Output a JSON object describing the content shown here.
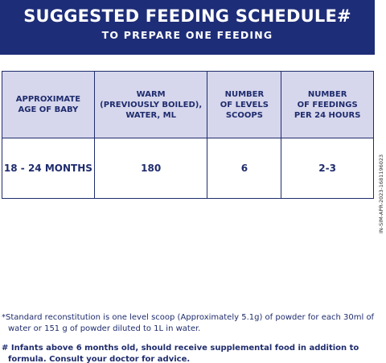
{
  "header": {
    "title": "SUGGESTED FEEDING SCHEDULE#",
    "subtitle": "TO PREPARE ONE FEEDING"
  },
  "table": {
    "columns": [
      "APPROXIMATE\nAGE OF BABY",
      "WARM\n(PREVIOUSLY BOILED),\nWATER, ML",
      "NUMBER\nOF LEVELS\nSCOOPS",
      "NUMBER\nOF FEEDINGS\nPER 24 HOURS"
    ],
    "rows": [
      [
        "18 - 24 MONTHS",
        "180",
        "6",
        "2-3"
      ]
    ]
  },
  "side_code": "IN-SIM-APR-2023-1681196023",
  "footnotes": [
    "*Standard reconstitution is one level scoop (Approximately 5.1g) of powder for each 30ml of water or 151 g of powder diluted to 1L in water.",
    "# Infants above 6 months old, should receive supplemental food in addition to formula. Consult your doctor for advice."
  ]
}
